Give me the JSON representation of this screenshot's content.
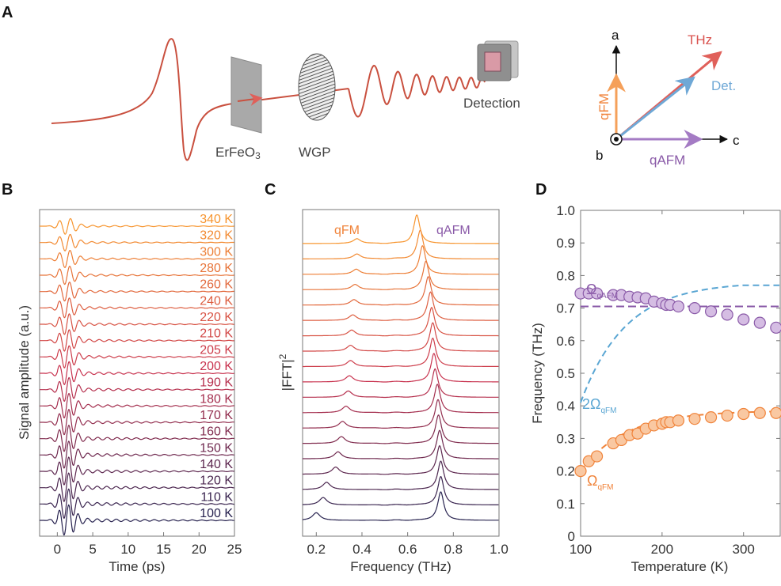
{
  "panels": {
    "A": "A",
    "B": "B",
    "C": "C",
    "D": "D"
  },
  "diagram": {
    "sample_label": "ErFeO",
    "sample_sub": "3",
    "wgp_label": "WGP",
    "detection_label": "Detection",
    "axes": {
      "a": "a",
      "b": "b",
      "c": "c",
      "thz": "THz",
      "det": "Det.",
      "qfm": "qFM",
      "qafm": "qAFM"
    },
    "colors": {
      "thz": "#d9534f",
      "det": "#6fa8d6",
      "qfm": "#f5a05a",
      "qafm": "#a47bc4",
      "wave": "#c9503f"
    }
  },
  "colors": {
    "hot": "#f7952f",
    "mid": "#c8324e",
    "cold": "#27224f",
    "qfm": "#f0833a",
    "qafm": "#8a5aa8",
    "twoqfm": "#5aa6d3"
  },
  "chart_data": [
    {
      "panel": "B",
      "type": "line",
      "xlabel": "Time (ps)",
      "ylabel": "Signal amplitude (a.u.)",
      "xlim": [
        -2.5,
        25
      ],
      "xticks": [
        "0",
        "5",
        "10",
        "15",
        "20",
        "25"
      ],
      "series_labels": [
        "340 K",
        "320 K",
        "300 K",
        "280 K",
        "260 K",
        "240 K",
        "220 K",
        "210 K",
        "205 K",
        "200 K",
        "190 K",
        "180 K",
        "170 K",
        "160 K",
        "150 K",
        "140 K",
        "120 K",
        "110 K",
        "100 K"
      ]
    },
    {
      "panel": "C",
      "type": "line",
      "xlabel": "Frequency (THz)",
      "ylabel": "|FFT|",
      "ylabel_sup": "2",
      "xlim": [
        0.14,
        1.0
      ],
      "xticks": [
        "0.2",
        "0.4",
        "0.6",
        "0.8",
        "1.0"
      ],
      "annotations": {
        "qfm": "qFM",
        "qafm": "qAFM"
      }
    },
    {
      "panel": "D",
      "type": "scatter",
      "xlabel": "Temperature (K)",
      "ylabel": "Frequency (THz)",
      "xlim": [
        100,
        345
      ],
      "ylim": [
        0,
        1.0
      ],
      "xticks": [
        "100",
        "200",
        "300"
      ],
      "yticks": [
        "0",
        "0.1",
        "0.2",
        "0.3",
        "0.4",
        "0.5",
        "0.6",
        "0.7",
        "0.8",
        "0.9",
        "1.0"
      ],
      "temperatures": [
        100,
        110,
        120,
        140,
        150,
        160,
        170,
        180,
        190,
        200,
        205,
        210,
        220,
        240,
        260,
        280,
        300,
        320,
        340
      ],
      "series": [
        {
          "key": "qafm",
          "values": [
            0.745,
            0.745,
            0.745,
            0.74,
            0.74,
            0.735,
            0.733,
            0.73,
            0.72,
            0.715,
            0.71,
            0.71,
            0.705,
            0.7,
            0.69,
            0.68,
            0.665,
            0.655,
            0.64
          ]
        },
        {
          "key": "qfm",
          "values": [
            0.2,
            0.23,
            0.245,
            0.285,
            0.295,
            0.31,
            0.315,
            0.33,
            0.34,
            0.345,
            0.35,
            0.35,
            0.355,
            0.36,
            0.365,
            0.37,
            0.375,
            0.378,
            0.378
          ]
        }
      ],
      "qafm_constant": 0.705,
      "labels": {
        "omega": "Ω",
        "two_omega": "2Ω",
        "qafm_sub": "qAFM",
        "qfm_sub": "qFM"
      }
    }
  ]
}
